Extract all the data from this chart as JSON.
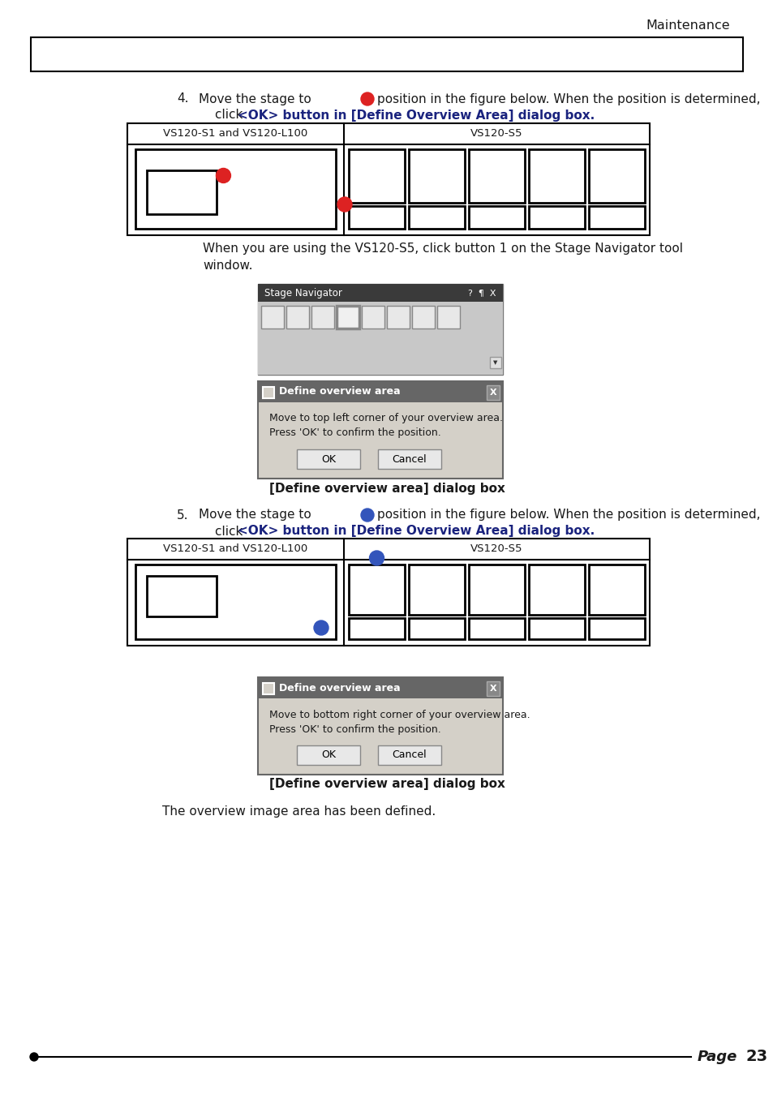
{
  "title_header": "Maintenance",
  "page_number": "23",
  "col1_label": "VS120-S1 and VS120-L100",
  "col2_label": "VS120-S5",
  "step4_line1_pre": "4.    Move the stage to",
  "step4_line1_post": "position in the figure below. When the position is determined,",
  "step4_line2": "click ",
  "step4_line2_bold": "<OK> button in [Define Overview Area] dialog box.",
  "step5_line1_pre": "5.    Move the stage to",
  "step5_line1_post": "position in the figure below. When the position is determined,",
  "step5_line2": "click ",
  "step5_line2_bold": "<OK> button in [Define Overview Area] dialog box.",
  "nav_line1": "When you are using the VS120-S5, click button 1 on the Stage Navigator tool",
  "nav_line2": "window.",
  "dlg1_title": "Define overview area",
  "dlg1_line1": "Move to top left corner of your overview area.",
  "dlg1_line2": "Press 'OK' to confirm the position.",
  "dlg2_title": "Define overview area",
  "dlg2_line1": "Move to bottom right corner of your overview area.",
  "dlg2_line2": "Press 'OK' to confirm the position.",
  "dlg_caption1": "[Define overview area] dialog box",
  "dlg_caption2": "[Define overview area] dialog box",
  "bottom_text": "The overview image area has been defined.",
  "blue_link": "#1a237e",
  "red_dot": "#DD2222",
  "blue_dot": "#3355BB",
  "text_color": "#1a1a1a",
  "bg_color": "#FFFFFF",
  "dlg_titlebar": "#555555",
  "dlg_bg": "#D4D0C8",
  "dlg_border": "#888888"
}
